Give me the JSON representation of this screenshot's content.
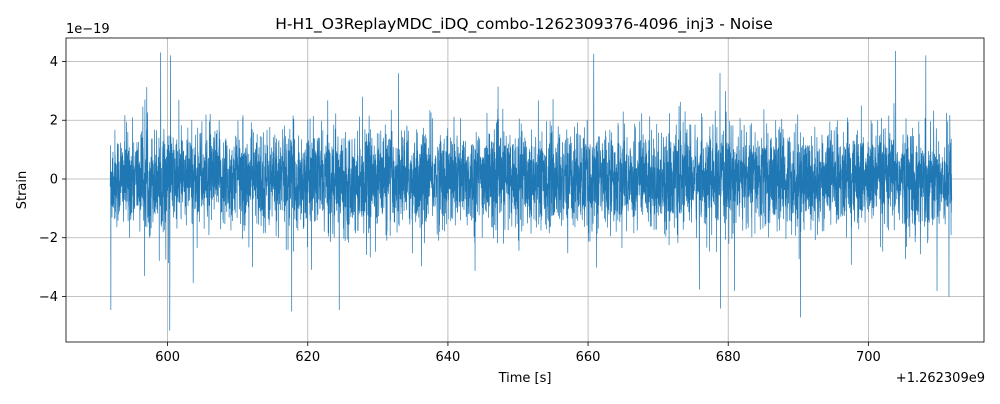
{
  "chart_data": {
    "type": "line",
    "title": "H-H1_O3ReplayMDC_iDQ_combo-1262309376-4096_inj3 - Noise",
    "xlabel": "Time [s]",
    "ylabel": "Strain",
    "x_offset_label": "+1.262309e9",
    "y_scale_label": "1e−19",
    "xlim": [
      585.5,
      716.5
    ],
    "ylim": [
      -5.55,
      4.8
    ],
    "x_range": [
      591.8,
      711.9
    ],
    "x_ticks": [
      600,
      620,
      640,
      660,
      680,
      700
    ],
    "x_tick_labels": [
      "600",
      "620",
      "640",
      "660",
      "680",
      "700"
    ],
    "y_ticks": [
      4,
      2,
      0,
      -2,
      -4
    ],
    "y_tick_labels": [
      "4",
      "2",
      "0",
      "−2",
      "−4"
    ],
    "grid": true,
    "series": [
      {
        "color": "#1f77b4",
        "description_of_values": "Gaussian-like noise strain; envelope mostly within about ±2.5 (×1e-19) with spikes up to about 4.3 and down to about -5.2",
        "peaks": [
          {
            "x": 599.0,
            "y": 4.3
          },
          {
            "x": 600.4,
            "y": 4.2
          },
          {
            "x": 660.8,
            "y": 4.25
          },
          {
            "x": 703.9,
            "y": 4.35
          },
          {
            "x": 708.2,
            "y": 4.2
          }
        ],
        "troughs": [
          {
            "x": 591.9,
            "y": -4.45
          },
          {
            "x": 600.3,
            "y": -5.15
          },
          {
            "x": 617.7,
            "y": -4.5
          },
          {
            "x": 624.5,
            "y": -4.45
          },
          {
            "x": 678.9,
            "y": -4.4
          },
          {
            "x": 690.3,
            "y": -4.7
          },
          {
            "x": 711.5,
            "y": -4.0
          }
        ]
      }
    ]
  }
}
